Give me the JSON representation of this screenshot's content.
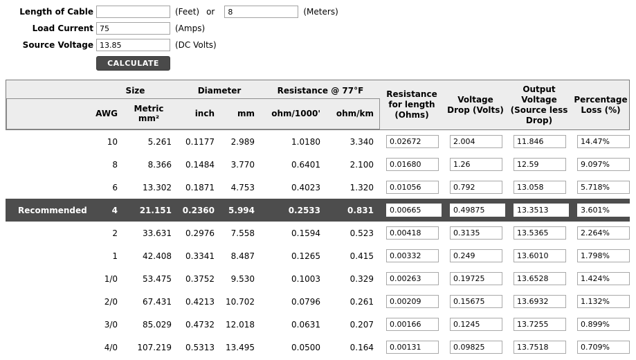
{
  "colors": {
    "header_bg": "#ededed",
    "header_border": "#7a7a7a",
    "recommended_row_bg": "#4d4d4d",
    "button_bg": "#4a4a4a"
  },
  "form": {
    "length_label": "Length of Cable",
    "feet_value": "",
    "feet_unit": "(Feet)",
    "or_text": "or",
    "meters_value": "8",
    "meters_unit": "(Meters)",
    "current_label": "Load Current",
    "current_value": "75",
    "current_unit": "(Amps)",
    "voltage_label": "Source Voltage",
    "voltage_value": "13.85",
    "voltage_unit": "(DC Volts)",
    "calculate_label": "CALCULATE"
  },
  "table": {
    "groups": {
      "size": "Size",
      "diameter": "Diameter",
      "resistance": "Resistance @ 77°F"
    },
    "subheaders": {
      "awg": "AWG",
      "metric_line1": "Metric",
      "metric_line2": "mm²",
      "inch": "inch",
      "mm": "mm",
      "ohm_per_1000ft": "ohm/1000'",
      "ohm_per_km": "ohm/km"
    },
    "right_headers": {
      "resistance_for_length": "Resistance for length (Ohms)",
      "voltage_drop": "Voltage Drop (Volts)",
      "output_voltage": "Output Voltage (Source less Drop)",
      "percentage_loss": "Percentage Loss (%)"
    },
    "rows": [
      {
        "label": "",
        "awg": "10",
        "metric": "5.261",
        "inch": "0.1177",
        "mm": "2.989",
        "ohm1000": "1.0180",
        "ohmkm": "3.340",
        "res": "0.02672",
        "drop": "2.004",
        "vout": "11.846",
        "loss": "14.47%"
      },
      {
        "label": "",
        "awg": "8",
        "metric": "8.366",
        "inch": "0.1484",
        "mm": "3.770",
        "ohm1000": "0.6401",
        "ohmkm": "2.100",
        "res": "0.01680",
        "drop": "1.26",
        "vout": "12.59",
        "loss": "9.097%"
      },
      {
        "label": "",
        "awg": "6",
        "metric": "13.302",
        "inch": "0.1871",
        "mm": "4.753",
        "ohm1000": "0.4023",
        "ohmkm": "1.320",
        "res": "0.01056",
        "drop": "0.792",
        "vout": "13.058",
        "loss": "5.718%"
      },
      {
        "label": "Recommended",
        "awg": "4",
        "metric": "21.151",
        "inch": "0.2360",
        "mm": "5.994",
        "ohm1000": "0.2533",
        "ohmkm": "0.831",
        "res": "0.00665",
        "drop": "0.49875",
        "vout": "13.3513",
        "loss": "3.601%"
      },
      {
        "label": "",
        "awg": "2",
        "metric": "33.631",
        "inch": "0.2976",
        "mm": "7.558",
        "ohm1000": "0.1594",
        "ohmkm": "0.523",
        "res": "0.00418",
        "drop": "0.3135",
        "vout": "13.5365",
        "loss": "2.264%"
      },
      {
        "label": "",
        "awg": "1",
        "metric": "42.408",
        "inch": "0.3341",
        "mm": "8.487",
        "ohm1000": "0.1265",
        "ohmkm": "0.415",
        "res": "0.00332",
        "drop": "0.249",
        "vout": "13.6010",
        "loss": "1.798%"
      },
      {
        "label": "",
        "awg": "1/0",
        "metric": "53.475",
        "inch": "0.3752",
        "mm": "9.530",
        "ohm1000": "0.1003",
        "ohmkm": "0.329",
        "res": "0.00263",
        "drop": "0.19725",
        "vout": "13.6528",
        "loss": "1.424%"
      },
      {
        "label": "",
        "awg": "2/0",
        "metric": "67.431",
        "inch": "0.4213",
        "mm": "10.702",
        "ohm1000": "0.0796",
        "ohmkm": "0.261",
        "res": "0.00209",
        "drop": "0.15675",
        "vout": "13.6932",
        "loss": "1.132%"
      },
      {
        "label": "",
        "awg": "3/0",
        "metric": "85.029",
        "inch": "0.4732",
        "mm": "12.018",
        "ohm1000": "0.0631",
        "ohmkm": "0.207",
        "res": "0.00166",
        "drop": "0.1245",
        "vout": "13.7255",
        "loss": "0.899%"
      },
      {
        "label": "",
        "awg": "4/0",
        "metric": "107.219",
        "inch": "0.5313",
        "mm": "13.495",
        "ohm1000": "0.0500",
        "ohmkm": "0.164",
        "res": "0.00131",
        "drop": "0.09825",
        "vout": "13.7518",
        "loss": "0.709%"
      }
    ]
  }
}
